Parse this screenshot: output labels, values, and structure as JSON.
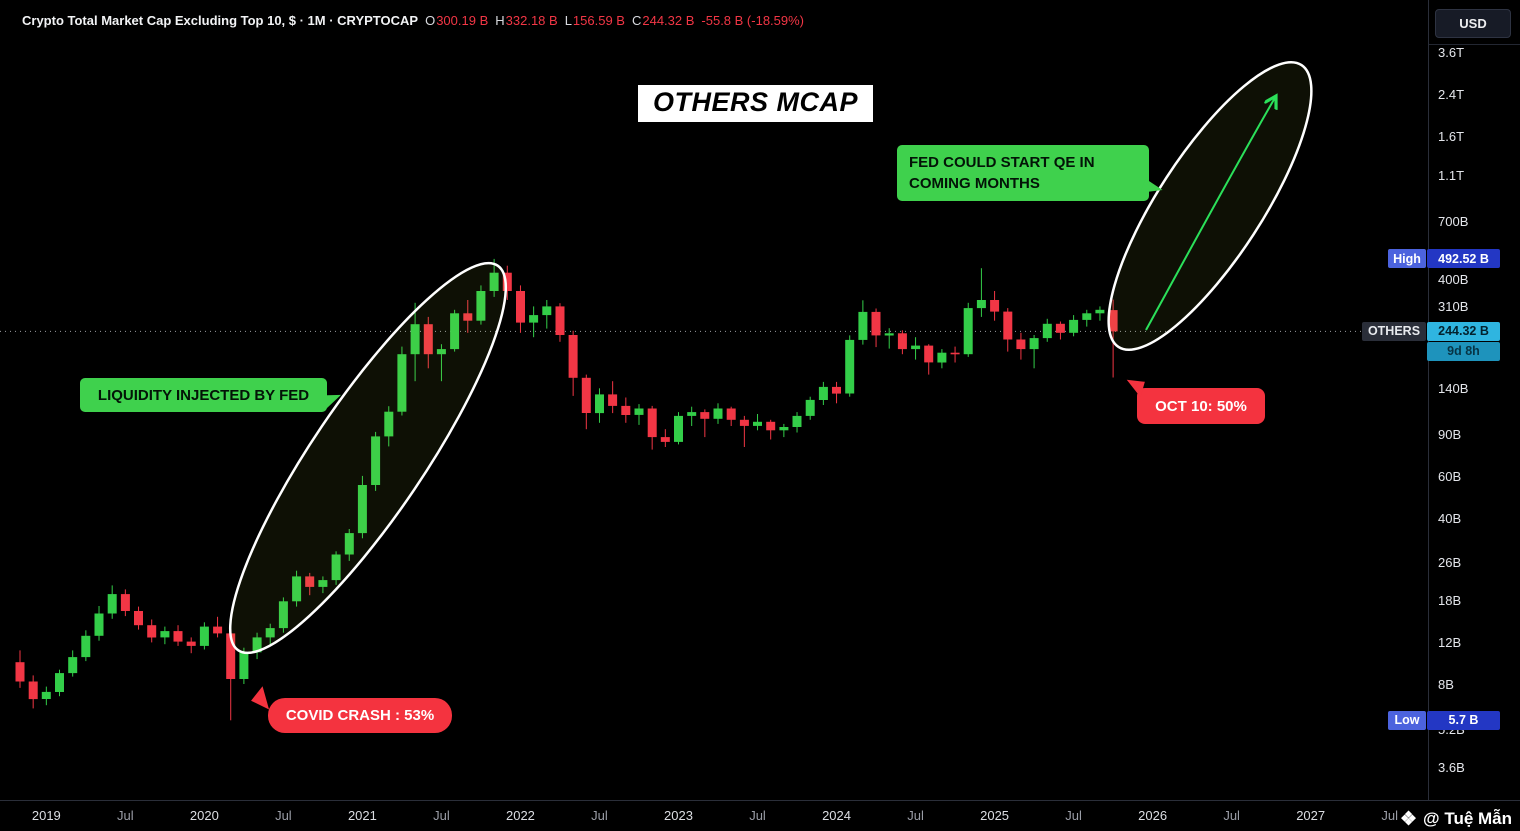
{
  "header": {
    "symbol_title": "Crypto Total Market Cap Excluding Top 10, $ · 1M · CRYPTOCAP",
    "ohlc": {
      "o_label": "O",
      "o": "300.19 B",
      "h_label": "H",
      "h": "332.18 B",
      "l_label": "L",
      "l": "156.59 B",
      "c_label": "C",
      "c": "244.32 B",
      "change": "-55.8 B (-18.59%)"
    }
  },
  "overlay": {
    "chart_title": "OTHERS MCAP"
  },
  "annotations": {
    "liquidity": "LIQUIDITY INJECTED BY FED",
    "covid": "COVID CRASH : 53%",
    "fed_qe_line1": "FED COULD START QE IN",
    "fed_qe_line2": "COMING MONTHS",
    "oct10": "OCT 10: 50%"
  },
  "price_axis": {
    "currency_button": "USD",
    "ticks": [
      {
        "label": "3.6T",
        "value": 3600
      },
      {
        "label": "2.4T",
        "value": 2400
      },
      {
        "label": "1.6T",
        "value": 1600
      },
      {
        "label": "1.1T",
        "value": 1100
      },
      {
        "label": "700B",
        "value": 700
      },
      {
        "label": "400B",
        "value": 400
      },
      {
        "label": "310B",
        "value": 310
      },
      {
        "label": "140B",
        "value": 140
      },
      {
        "label": "90B",
        "value": 90
      },
      {
        "label": "60B",
        "value": 60
      },
      {
        "label": "40B",
        "value": 40
      },
      {
        "label": "26B",
        "value": 26
      },
      {
        "label": "18B",
        "value": 18
      },
      {
        "label": "12B",
        "value": 12
      },
      {
        "label": "8B",
        "value": 8
      },
      {
        "label": "5.2B",
        "value": 5.2
      },
      {
        "label": "3.6B",
        "value": 3.6
      }
    ],
    "high_badge": {
      "label": "High",
      "value": "492.52 B"
    },
    "others_badge": {
      "label": "OTHERS",
      "value": "244.32 B",
      "countdown": "9d 8h"
    },
    "low_badge": {
      "label": "Low",
      "value": "5.7 B"
    }
  },
  "time_axis": {
    "ticks": [
      {
        "label": "2019",
        "m": 2,
        "minor": false
      },
      {
        "label": "Jul",
        "m": 8,
        "minor": true
      },
      {
        "label": "2020",
        "m": 14,
        "minor": false
      },
      {
        "label": "Jul",
        "m": 20,
        "minor": true
      },
      {
        "label": "2021",
        "m": 26,
        "minor": false
      },
      {
        "label": "Jul",
        "m": 32,
        "minor": true
      },
      {
        "label": "2022",
        "m": 38,
        "minor": false
      },
      {
        "label": "Jul",
        "m": 44,
        "minor": true
      },
      {
        "label": "2023",
        "m": 50,
        "minor": false
      },
      {
        "label": "Jul",
        "m": 56,
        "minor": true
      },
      {
        "label": "2024",
        "m": 62,
        "minor": false
      },
      {
        "label": "Jul",
        "m": 68,
        "minor": true
      },
      {
        "label": "2025",
        "m": 74,
        "minor": false
      },
      {
        "label": "Jul",
        "m": 80,
        "minor": true
      },
      {
        "label": "2026",
        "m": 86,
        "minor": false
      },
      {
        "label": "Jul",
        "m": 92,
        "minor": true
      },
      {
        "label": "2027",
        "m": 98,
        "minor": false
      },
      {
        "label": "Jul",
        "m": 104,
        "minor": true
      }
    ]
  },
  "watermark": {
    "icon": "❖",
    "handle": "@ Tuệ Mẫn"
  },
  "chart_data": {
    "type": "candlestick",
    "title": "OTHERS MCAP",
    "symbol": "CRYPTOCAP:OTHERS",
    "interval": "1M",
    "scale": "log",
    "unit": "billions USD",
    "ylim": [
      3.6,
      3600
    ],
    "x_range": [
      "2018-11",
      "2027-07"
    ],
    "current_price": 244.32,
    "all_time_high": 492.52,
    "all_time_low": 5.7,
    "colors": {
      "up": "#33CE49",
      "down": "#F23645"
    },
    "candles": [
      [
        "2018-11",
        10.0,
        11.2,
        7.8,
        8.3
      ],
      [
        "2018-12",
        8.3,
        8.8,
        6.4,
        7.0
      ],
      [
        "2019-01",
        7.0,
        7.9,
        6.6,
        7.5
      ],
      [
        "2019-02",
        7.5,
        9.3,
        7.2,
        9.0
      ],
      [
        "2019-03",
        9.0,
        11.2,
        8.7,
        10.5
      ],
      [
        "2019-04",
        10.5,
        13.6,
        10.1,
        12.9
      ],
      [
        "2019-05",
        12.9,
        17.2,
        12.3,
        16.0
      ],
      [
        "2019-06",
        16.0,
        21.0,
        15.2,
        19.3
      ],
      [
        "2019-07",
        19.3,
        20.2,
        15.6,
        16.4
      ],
      [
        "2019-08",
        16.4,
        17.1,
        13.7,
        14.3
      ],
      [
        "2019-09",
        14.3,
        15.1,
        12.1,
        12.7
      ],
      [
        "2019-10",
        12.7,
        14.1,
        11.9,
        13.5
      ],
      [
        "2019-11",
        13.5,
        14.3,
        11.7,
        12.2
      ],
      [
        "2019-12",
        12.2,
        12.7,
        10.9,
        11.7
      ],
      [
        "2020-01",
        11.7,
        14.7,
        11.3,
        14.1
      ],
      [
        "2020-02",
        14.1,
        15.5,
        12.7,
        13.2
      ],
      [
        "2020-03",
        13.2,
        13.5,
        5.7,
        8.5
      ],
      [
        "2020-04",
        8.5,
        11.5,
        8.1,
        11.0
      ],
      [
        "2020-05",
        11.0,
        13.3,
        10.3,
        12.7
      ],
      [
        "2020-06",
        12.7,
        14.5,
        11.9,
        13.9
      ],
      [
        "2020-07",
        13.9,
        18.7,
        13.3,
        18.0
      ],
      [
        "2020-08",
        18.0,
        24.2,
        17.1,
        22.9
      ],
      [
        "2020-09",
        22.9,
        23.7,
        19.1,
        20.7
      ],
      [
        "2020-10",
        20.7,
        22.9,
        19.5,
        22.1
      ],
      [
        "2020-11",
        22.1,
        29.2,
        21.1,
        28.3
      ],
      [
        "2020-12",
        28.3,
        36.2,
        26.6,
        34.8
      ],
      [
        "2021-01",
        34.8,
        60.5,
        33.1,
        55.4
      ],
      [
        "2021-02",
        55.4,
        92.5,
        52.3,
        88.6
      ],
      [
        "2021-03",
        88.6,
        118.6,
        80.4,
        112.5
      ],
      [
        "2021-04",
        112.5,
        211.0,
        108.4,
        196.0
      ],
      [
        "2021-05",
        196.0,
        322.0,
        151.0,
        262.0
      ],
      [
        "2021-06",
        262.0,
        281.0,
        171.0,
        196.0
      ],
      [
        "2021-07",
        196.0,
        216.0,
        151.0,
        206.0
      ],
      [
        "2021-08",
        206.0,
        301.0,
        201.0,
        291.0
      ],
      [
        "2021-09",
        291.0,
        331.0,
        241.0,
        271.0
      ],
      [
        "2021-10",
        271.0,
        381.0,
        261.0,
        361.0
      ],
      [
        "2021-11",
        361.0,
        492.52,
        341.0,
        431.0
      ],
      [
        "2021-12",
        431.0,
        461.0,
        331.0,
        361.0
      ],
      [
        "2022-01",
        361.0,
        381.0,
        241.0,
        266.0
      ],
      [
        "2022-02",
        266.0,
        311.0,
        231.0,
        286.0
      ],
      [
        "2022-03",
        286.0,
        331.0,
        251.0,
        311.0
      ],
      [
        "2022-04",
        311.0,
        321.0,
        221.0,
        236.0
      ],
      [
        "2022-05",
        236.0,
        246.0,
        131.0,
        156.0
      ],
      [
        "2022-06",
        156.0,
        161.0,
        95.0,
        111.0
      ],
      [
        "2022-07",
        111.0,
        141.0,
        101.0,
        133.0
      ],
      [
        "2022-08",
        133.0,
        151.0,
        111.0,
        119.0
      ],
      [
        "2022-09",
        119.0,
        129.0,
        101.0,
        109.0
      ],
      [
        "2022-10",
        109.0,
        121.0,
        99.0,
        116.0
      ],
      [
        "2022-11",
        116.0,
        119.0,
        78.0,
        88.0
      ],
      [
        "2022-12",
        88.0,
        95.0,
        80.0,
        84.0
      ],
      [
        "2023-01",
        84.0,
        112.0,
        82.0,
        108.0
      ],
      [
        "2023-02",
        108.0,
        118.0,
        98.0,
        112.0
      ],
      [
        "2023-03",
        112.0,
        115.0,
        88.0,
        105.0
      ],
      [
        "2023-04",
        105.0,
        122.0,
        100.0,
        116.0
      ],
      [
        "2023-05",
        116.0,
        118.0,
        98.0,
        104.0
      ],
      [
        "2023-06",
        104.0,
        108.0,
        80.0,
        98.0
      ],
      [
        "2023-07",
        98.0,
        110.0,
        94.0,
        102.0
      ],
      [
        "2023-08",
        102.0,
        104.0,
        86.0,
        94.0
      ],
      [
        "2023-09",
        94.0,
        100.0,
        88.0,
        97.0
      ],
      [
        "2023-10",
        97.0,
        112.0,
        92.0,
        108.0
      ],
      [
        "2023-11",
        108.0,
        130.0,
        104.0,
        126.0
      ],
      [
        "2023-12",
        126.0,
        150.0,
        120.0,
        143.0
      ],
      [
        "2024-01",
        143.0,
        150.0,
        122.0,
        134.0
      ],
      [
        "2024-02",
        134.0,
        235.0,
        130.0,
        225.0
      ],
      [
        "2024-03",
        225.0,
        330.0,
        215.0,
        295.0
      ],
      [
        "2024-04",
        295.0,
        305.0,
        210.0,
        235.0
      ],
      [
        "2024-05",
        235.0,
        252.0,
        207.0,
        240.0
      ],
      [
        "2024-06",
        240.0,
        247.0,
        196.0,
        206.0
      ],
      [
        "2024-07",
        206.0,
        231.0,
        186.0,
        213.0
      ],
      [
        "2024-08",
        213.0,
        216.0,
        161.0,
        181.0
      ],
      [
        "2024-09",
        181.0,
        206.0,
        171.0,
        199.0
      ],
      [
        "2024-10",
        199.0,
        211.0,
        181.0,
        196.0
      ],
      [
        "2024-11",
        196.0,
        322.0,
        191.0,
        306.0
      ],
      [
        "2024-12",
        306.0,
        450.0,
        281.0,
        331.0
      ],
      [
        "2025-01",
        331.0,
        361.0,
        271.0,
        296.0
      ],
      [
        "2025-02",
        296.0,
        306.0,
        201.0,
        226.0
      ],
      [
        "2025-03",
        226.0,
        241.0,
        186.0,
        206.0
      ],
      [
        "2025-04",
        206.0,
        236.0,
        171.0,
        229.0
      ],
      [
        "2025-05",
        229.0,
        276.0,
        221.0,
        263.0
      ],
      [
        "2025-06",
        263.0,
        269.0,
        226.0,
        241.0
      ],
      [
        "2025-07",
        241.0,
        286.0,
        233.0,
        273.0
      ],
      [
        "2025-08",
        273.0,
        301.0,
        256.0,
        291.0
      ],
      [
        "2025-09",
        291.0,
        311.0,
        271.0,
        301.0
      ],
      [
        "2025-10",
        300.19,
        332.18,
        156.59,
        244.32
      ]
    ]
  }
}
